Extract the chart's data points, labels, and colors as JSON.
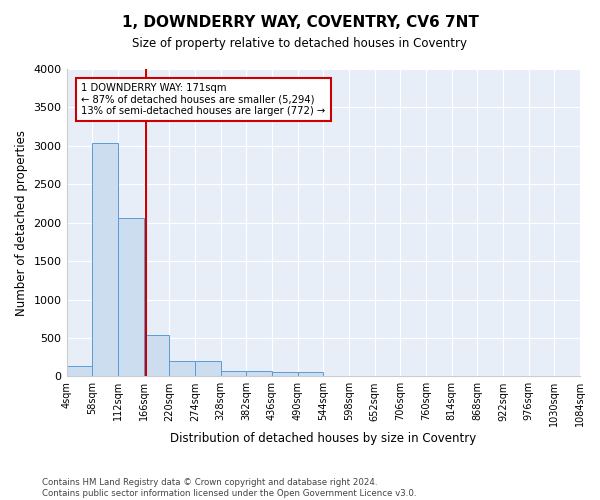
{
  "title": "1, DOWNDERRY WAY, COVENTRY, CV6 7NT",
  "subtitle": "Size of property relative to detached houses in Coventry",
  "xlabel": "Distribution of detached houses by size in Coventry",
  "ylabel": "Number of detached properties",
  "bin_edges": [
    4,
    58,
    112,
    166,
    220,
    274,
    328,
    382,
    436,
    490,
    544,
    598,
    652,
    706,
    760,
    814,
    868,
    922,
    976,
    1030,
    1084
  ],
  "bar_heights": [
    140,
    3040,
    2060,
    540,
    195,
    195,
    70,
    70,
    50,
    50,
    0,
    0,
    0,
    0,
    0,
    0,
    0,
    0,
    0,
    0
  ],
  "bar_color": "#ccddf0",
  "bar_edge_color": "#5b9bd5",
  "property_size": 171,
  "annotation_title": "1 DOWNDERRY WAY: 171sqm",
  "annotation_line1": "← 87% of detached houses are smaller (5,294)",
  "annotation_line2": "13% of semi-detached houses are larger (772) →",
  "red_color": "#cc0000",
  "ylim": [
    0,
    4000
  ],
  "yticks": [
    0,
    500,
    1000,
    1500,
    2000,
    2500,
    3000,
    3500,
    4000
  ],
  "footer_line1": "Contains HM Land Registry data © Crown copyright and database right 2024.",
  "footer_line2": "Contains public sector information licensed under the Open Government Licence v3.0.",
  "fig_facecolor": "#ffffff",
  "plot_bg_color": "#e8eef8"
}
